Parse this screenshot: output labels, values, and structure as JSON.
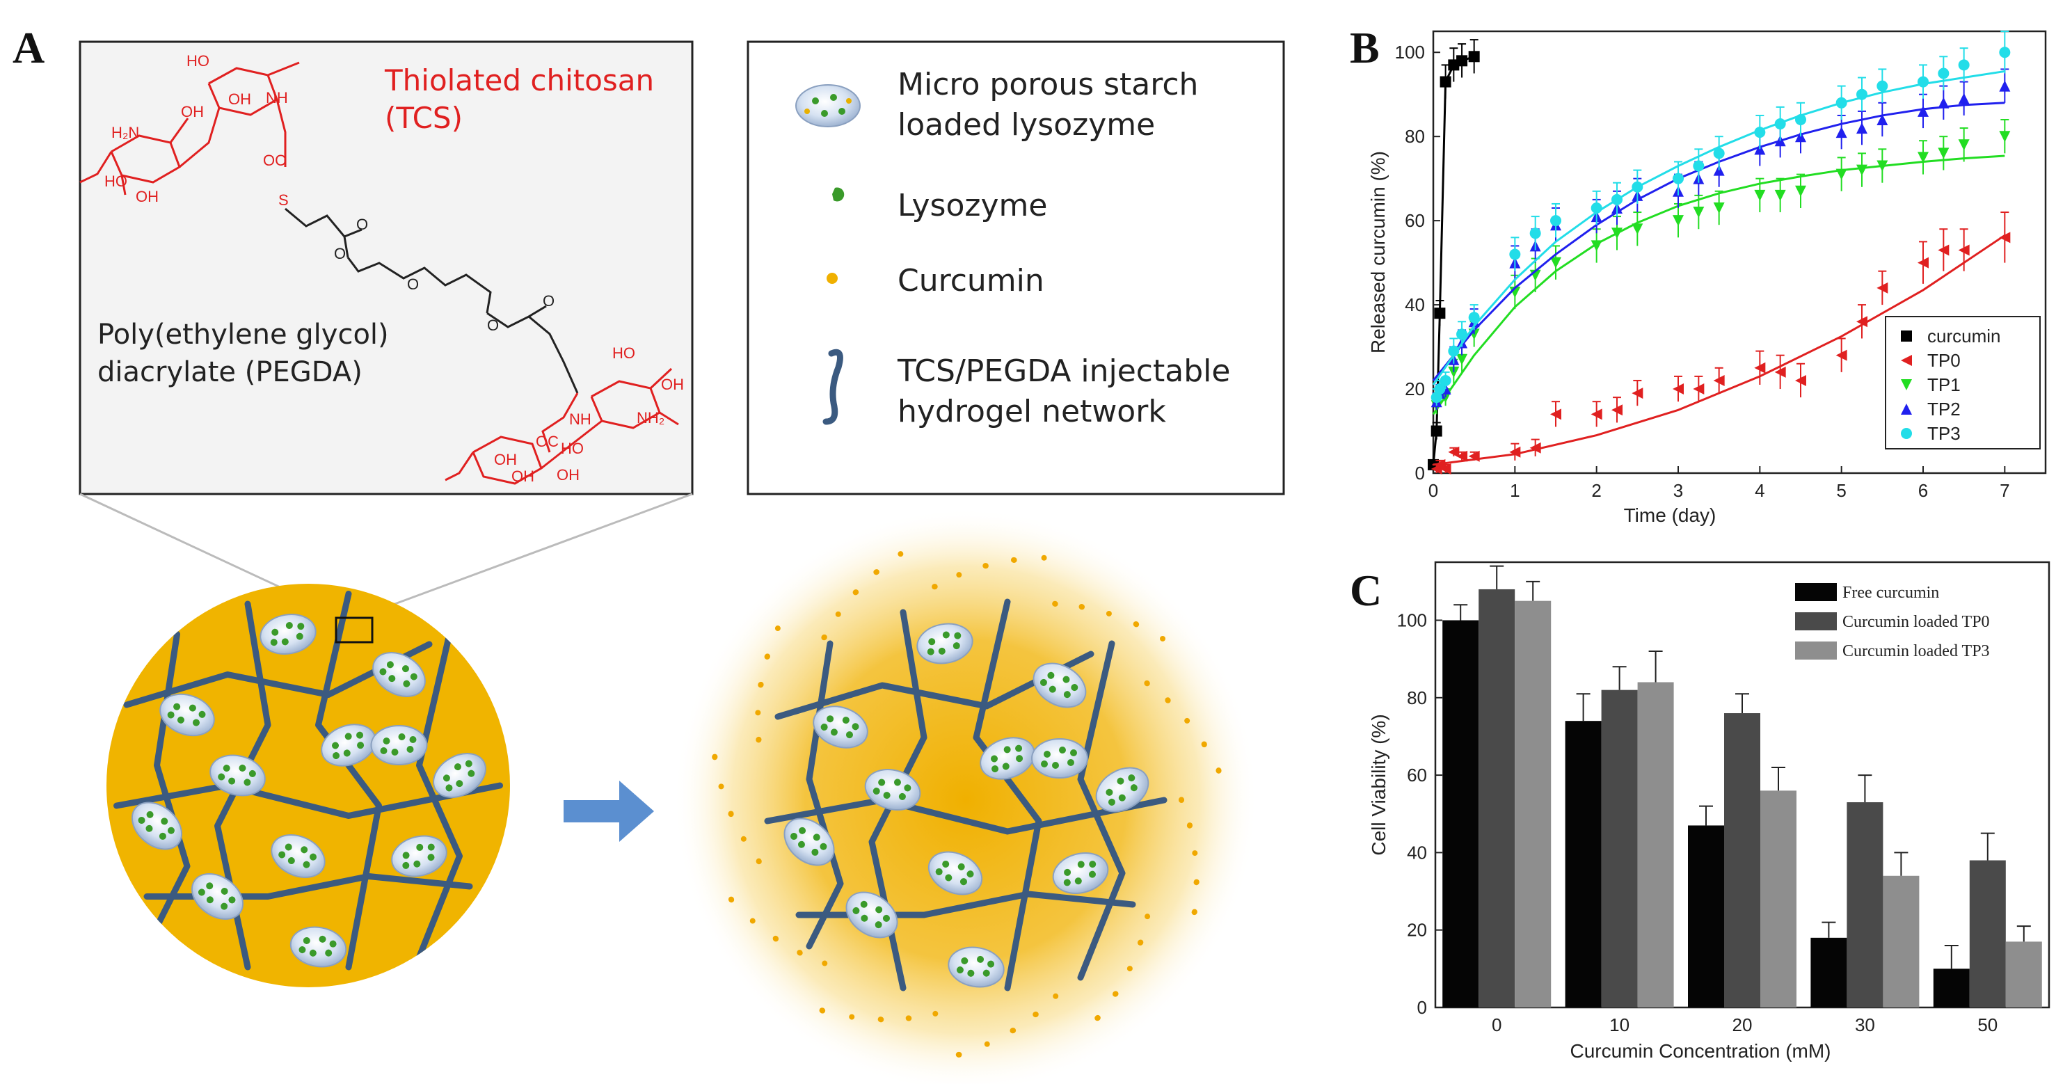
{
  "panels": {
    "a": {
      "letter": "A"
    },
    "b": {
      "letter": "B"
    },
    "c": {
      "letter": "C"
    }
  },
  "schematic": {
    "chem_top_label": "Thiolated chitosan",
    "chem_top_abbr": "(TCS)",
    "chem_mid_label_1": "Poly(ethylene glycol)",
    "chem_mid_label_2": "diacrylate (PEGDA)",
    "atoms": {
      "oh": "OH",
      "nh": "NH",
      "nh2": "NH₂",
      "h2n": "H₂N",
      "oc": "OC",
      "o": "O",
      "s": "S",
      "ho": "HO"
    },
    "legend": {
      "item1_line1": "Micro porous starch",
      "item1_line2": "loaded lysozyme",
      "item2": "Lysozyme",
      "item3": "Curcumin",
      "item4_line1": "TCS/PEGDA injectable",
      "item4_line2": "hydrogel network"
    },
    "colors": {
      "gel": "#f0b400",
      "network": "#3b5a80",
      "chitosan": "#e02020",
      "arrow": "#5b8fd0",
      "lysozyme": "#3a9a2a",
      "particle": "#c4d4ea"
    }
  },
  "chart_data": [
    {
      "type": "scatter",
      "title": "",
      "xlabel": "Time (day)",
      "ylabel": "Released curcumin (%)",
      "xlim": [
        0,
        7.5
      ],
      "ylim": [
        0,
        105
      ],
      "xticks": [
        "0",
        "1",
        "2",
        "3",
        "4",
        "5",
        "6",
        "7"
      ],
      "yticks": [
        "0",
        "20",
        "40",
        "60",
        "80",
        "100"
      ],
      "legend_position": "bottom-right",
      "series": [
        {
          "name": "curcumin",
          "color": "#000000",
          "marker": "square",
          "x": [
            0,
            0.04,
            0.08,
            0.15,
            0.25,
            0.35,
            0.5
          ],
          "y": [
            2,
            10,
            38,
            93,
            97,
            98,
            99
          ],
          "err": [
            1,
            2,
            3,
            4,
            4,
            4,
            4
          ],
          "fit_x": [
            0,
            0.04,
            0.08,
            0.15,
            0.25,
            0.35,
            0.5
          ],
          "fit_y": [
            2,
            10,
            38,
            93,
            97,
            98,
            99
          ]
        },
        {
          "name": "TP0",
          "color": "#e02020",
          "marker": "triangle-left",
          "x": [
            0.04,
            0.08,
            0.15,
            0.25,
            0.35,
            0.5,
            1,
            1.25,
            1.5,
            2,
            2.25,
            2.5,
            3,
            3.25,
            3.5,
            4,
            4.25,
            4.5,
            5,
            5.25,
            5.5,
            6,
            6.25,
            6.5,
            7
          ],
          "y": [
            1,
            2,
            1,
            5,
            4,
            4,
            5,
            6,
            14,
            14,
            15,
            19,
            20,
            20,
            22,
            25,
            24,
            22,
            28,
            36,
            44,
            50,
            53,
            53,
            56
          ],
          "err": [
            1,
            1,
            1,
            1,
            1,
            1,
            2,
            2,
            3,
            3,
            3,
            3,
            3,
            3,
            3,
            4,
            4,
            4,
            4,
            4,
            4,
            5,
            5,
            5,
            6
          ],
          "fit_x": [
            0,
            1,
            2,
            3,
            4,
            5,
            6,
            7
          ],
          "fit_y": [
            2,
            4.5,
            9,
            15,
            23,
            32.5,
            43.5,
            56.5
          ]
        },
        {
          "name": "TP1",
          "color": "#22dd22",
          "marker": "triangle-down",
          "x": [
            0.04,
            0.08,
            0.15,
            0.25,
            0.35,
            0.5,
            1,
            1.25,
            1.5,
            2,
            2.25,
            2.5,
            3,
            3.25,
            3.5,
            4,
            4.25,
            4.5,
            5,
            5.25,
            5.5,
            6,
            6.25,
            6.5,
            7
          ],
          "y": [
            16,
            18,
            18,
            24,
            27,
            33,
            43,
            47,
            50,
            54,
            57,
            58,
            60,
            62,
            63,
            66,
            66,
            67,
            71,
            72,
            73,
            75,
            76,
            78,
            80
          ],
          "err": [
            2,
            2,
            2,
            3,
            3,
            3,
            4,
            4,
            4,
            4,
            4,
            4,
            4,
            4,
            4,
            4,
            4,
            4,
            4,
            4,
            4,
            4,
            4,
            4,
            4
          ],
          "fit_x": [
            0,
            0.5,
            1,
            1.5,
            2,
            2.5,
            3,
            3.5,
            4,
            4.5,
            5,
            5.5,
            6,
            6.5,
            7
          ],
          "fit_y": [
            14,
            28,
            39.5,
            48,
            54.5,
            59.5,
            63.5,
            66.5,
            68.8,
            70.5,
            72,
            73,
            74,
            74.8,
            75.4
          ]
        },
        {
          "name": "TP2",
          "color": "#2020ee",
          "marker": "triangle-up",
          "x": [
            0.04,
            0.08,
            0.15,
            0.25,
            0.35,
            0.5,
            1,
            1.25,
            1.5,
            2,
            2.25,
            2.5,
            3,
            3.25,
            3.5,
            4,
            4.25,
            4.5,
            5,
            5.25,
            5.5,
            6,
            6.25,
            6.5,
            7
          ],
          "y": [
            17,
            19,
            20,
            27,
            31,
            36,
            50,
            54,
            59,
            61,
            63,
            66,
            67,
            70,
            72,
            77,
            79,
            80,
            81,
            82,
            84,
            86,
            88,
            89,
            92
          ],
          "err": [
            2,
            2,
            2,
            3,
            3,
            3,
            4,
            4,
            4,
            4,
            4,
            4,
            4,
            4,
            4,
            4,
            4,
            4,
            4,
            4,
            4,
            4,
            4,
            4,
            4
          ],
          "fit_x": [
            0,
            0.5,
            1,
            1.5,
            2,
            2.5,
            3,
            3.5,
            4,
            4.5,
            5,
            5.5,
            6,
            6.5,
            7
          ],
          "fit_y": [
            22,
            34,
            44,
            52,
            59,
            65,
            70,
            74,
            77.5,
            80.5,
            83,
            85,
            86.5,
            87.5,
            88
          ]
        },
        {
          "name": "TP3",
          "color": "#22dde8",
          "marker": "circle",
          "x": [
            0.04,
            0.08,
            0.15,
            0.25,
            0.35,
            0.5,
            1,
            1.25,
            1.5,
            2,
            2.25,
            2.5,
            3,
            3.25,
            3.5,
            4,
            4.25,
            4.5,
            5,
            5.25,
            5.5,
            6,
            6.25,
            6.5,
            7
          ],
          "y": [
            18,
            20,
            22,
            29,
            33,
            37,
            52,
            57,
            60,
            63,
            65,
            68,
            70,
            73,
            76,
            81,
            83,
            84,
            88,
            90,
            92,
            93,
            95,
            97,
            100
          ],
          "err": [
            2,
            2,
            2,
            3,
            3,
            3,
            4,
            4,
            4,
            4,
            4,
            4,
            4,
            4,
            4,
            4,
            4,
            4,
            4,
            4,
            4,
            4,
            4,
            4,
            5
          ],
          "fit_x": [
            0,
            0.5,
            1,
            1.5,
            2,
            2.5,
            3,
            3.5,
            4,
            4.5,
            5,
            5.5,
            6,
            6.5,
            7
          ],
          "fit_y": [
            21,
            35,
            46,
            55,
            62,
            68,
            73,
            77.5,
            81.5,
            85,
            88,
            90.5,
            92.5,
            94,
            95.5
          ]
        }
      ]
    },
    {
      "type": "bar",
      "title": "",
      "xlabel": "Curcumin Concentration (mM)",
      "ylabel": "Cell Viability (%)",
      "ylim": [
        0,
        115
      ],
      "yticks": [
        "0",
        "20",
        "40",
        "60",
        "80",
        "100"
      ],
      "categories": [
        "0",
        "10",
        "20",
        "30",
        "50"
      ],
      "legend_position": "top-right",
      "series": [
        {
          "name": "Free curcumin",
          "color": "#050505",
          "values": [
            100,
            74,
            47,
            18,
            10
          ],
          "err": [
            4,
            7,
            5,
            4,
            6
          ]
        },
        {
          "name": "Curcumin loaded TP0",
          "color": "#4a4a4a",
          "values": [
            108,
            82,
            76,
            53,
            38
          ],
          "err": [
            6,
            6,
            5,
            7,
            7
          ]
        },
        {
          "name": "Curcumin loaded TP3",
          "color": "#8e8e8e",
          "values": [
            105,
            84,
            56,
            34,
            17
          ],
          "err": [
            5,
            8,
            6,
            6,
            4
          ]
        }
      ]
    }
  ]
}
